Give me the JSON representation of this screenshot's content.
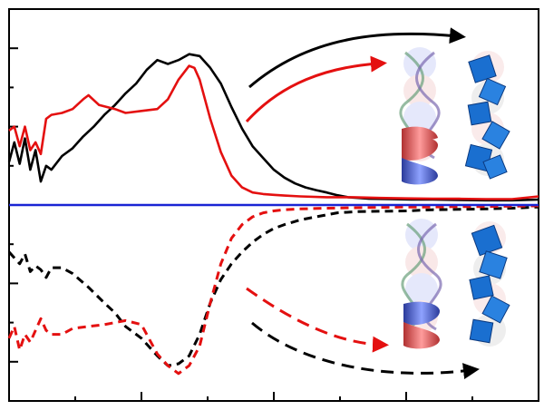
{
  "chart_data": {
    "type": "line",
    "title": "",
    "xlabel": "",
    "ylabel": "",
    "grid": false,
    "legend": "none",
    "xlim": [
      0,
      100
    ],
    "ylim": [
      -5,
      5
    ],
    "x_ticks_major": [
      0,
      25,
      50,
      75,
      100
    ],
    "x_ticks_minor": [
      12.5,
      37.5,
      62.5,
      87.5
    ],
    "y_ticks_major": [
      -4,
      -2,
      0,
      2,
      4
    ],
    "y_ticks_minor": [
      -3,
      -1,
      1,
      3
    ],
    "colors": {
      "black": "#000000",
      "red": "#e41010",
      "blue": "#1a24d4"
    },
    "series": [
      {
        "color": "#000000",
        "dash": "solid",
        "x": [
          0,
          1,
          2,
          3,
          4,
          5,
          6,
          7,
          8,
          10,
          12,
          14,
          16,
          18,
          20,
          22,
          24,
          26,
          28,
          30,
          32,
          34,
          36,
          38,
          40,
          42,
          44,
          46,
          48,
          50,
          52,
          54,
          56,
          58,
          60,
          62,
          64,
          66,
          68,
          72,
          76,
          80,
          85,
          90,
          95,
          100
        ],
        "y": [
          1.1,
          1.6,
          1.05,
          1.7,
          0.9,
          1.4,
          0.6,
          1.0,
          0.9,
          1.25,
          1.45,
          1.75,
          2.0,
          2.3,
          2.55,
          2.85,
          3.1,
          3.45,
          3.7,
          3.6,
          3.7,
          3.85,
          3.8,
          3.5,
          3.1,
          2.5,
          1.95,
          1.5,
          1.2,
          0.9,
          0.7,
          0.55,
          0.45,
          0.38,
          0.32,
          0.25,
          0.2,
          0.18,
          0.16,
          0.15,
          0.14,
          0.14,
          0.13,
          0.12,
          0.12,
          0.14
        ]
      },
      {
        "color": "#e41010",
        "dash": "solid",
        "x": [
          0,
          1,
          2,
          3,
          4,
          5,
          6,
          7,
          8,
          10,
          12,
          14,
          15,
          17,
          20,
          22,
          25,
          28,
          30,
          32,
          34,
          35,
          36,
          38,
          40,
          42,
          44,
          46,
          48,
          50,
          52,
          55,
          60,
          65,
          70,
          75,
          80,
          85,
          90,
          95,
          100
        ],
        "y": [
          1.9,
          2.0,
          1.5,
          2.0,
          1.4,
          1.6,
          1.3,
          2.2,
          2.3,
          2.35,
          2.45,
          2.7,
          2.8,
          2.55,
          2.45,
          2.35,
          2.4,
          2.45,
          2.7,
          3.2,
          3.55,
          3.5,
          3.2,
          2.2,
          1.35,
          0.75,
          0.45,
          0.32,
          0.28,
          0.26,
          0.24,
          0.22,
          0.2,
          0.2,
          0.18,
          0.17,
          0.16,
          0.16,
          0.15,
          0.15,
          0.22
        ]
      },
      {
        "color": "#000000",
        "dash": "dashed",
        "x": [
          0,
          1,
          2,
          3,
          4,
          5,
          6,
          7,
          8,
          10,
          12,
          15,
          18,
          20,
          22,
          25,
          28,
          30,
          32,
          34,
          36,
          38,
          40,
          42,
          44,
          46,
          48,
          50,
          52,
          55,
          58,
          62,
          66,
          70,
          75,
          80,
          85,
          90,
          95,
          100
        ],
        "y": [
          -1.2,
          -1.35,
          -1.5,
          -1.25,
          -1.7,
          -1.55,
          -1.65,
          -1.85,
          -1.6,
          -1.6,
          -1.75,
          -2.1,
          -2.5,
          -2.75,
          -3.1,
          -3.4,
          -3.85,
          -4.1,
          -4.05,
          -3.85,
          -3.3,
          -2.5,
          -1.9,
          -1.5,
          -1.2,
          -0.95,
          -0.75,
          -0.6,
          -0.5,
          -0.38,
          -0.3,
          -0.2,
          -0.17,
          -0.16,
          -0.15,
          -0.12,
          -0.11,
          -0.1,
          -0.08,
          -0.05
        ]
      },
      {
        "color": "#e41010",
        "dash": "dashed",
        "x": [
          0,
          1,
          2,
          3,
          4,
          5,
          6,
          7,
          8,
          10,
          12,
          15,
          18,
          20,
          22,
          25,
          26,
          28,
          30,
          32,
          34,
          36,
          38,
          40,
          42,
          44,
          46,
          48,
          50,
          52,
          55,
          60,
          65,
          70,
          75,
          80,
          85,
          90,
          95,
          100
        ],
        "y": [
          -3.4,
          -3.1,
          -3.7,
          -3.3,
          -3.5,
          -3.2,
          -2.9,
          -3.2,
          -3.3,
          -3.3,
          -3.15,
          -3.1,
          -3.05,
          -3.0,
          -2.95,
          -3.05,
          -3.3,
          -3.8,
          -4.1,
          -4.3,
          -4.1,
          -3.6,
          -2.5,
          -1.5,
          -0.85,
          -0.5,
          -0.3,
          -0.2,
          -0.15,
          -0.12,
          -0.1,
          -0.08,
          -0.07,
          -0.06,
          -0.05,
          -0.05,
          -0.04,
          -0.04,
          -0.03,
          -0.02
        ]
      },
      {
        "color": "#1a24d4",
        "dash": "solid",
        "x": [
          0,
          100
        ],
        "y": [
          0,
          0
        ]
      }
    ]
  },
  "illustrations": {
    "upper_left_structure": "dna-helix-illustration",
    "upper_right_structure": "blue-cube-stack-illustration",
    "lower_left_structure": "dna-helix-illustration",
    "lower_right_structure": "blue-cube-stack-illustration"
  }
}
